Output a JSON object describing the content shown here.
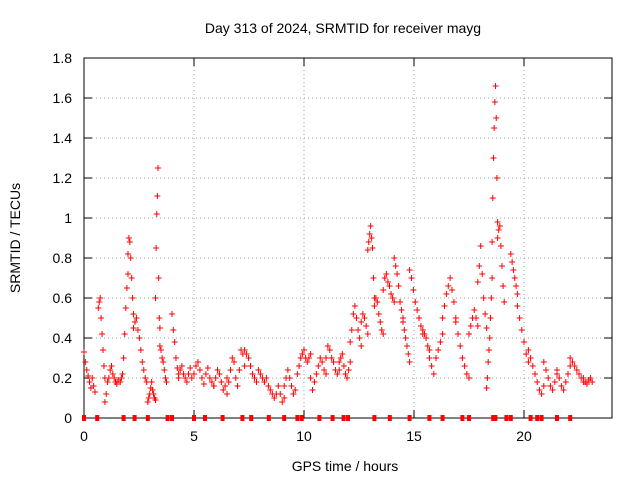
{
  "chart_data": {
    "type": "scatter",
    "title": "Day 313 of 2024, SRMTID for receiver mayg",
    "xlabel": "GPS time / hours",
    "ylabel": "SRMTID / TECUs",
    "xlim": [
      0,
      24
    ],
    "ylim": [
      0,
      1.8
    ],
    "xticks": [
      0,
      5,
      10,
      15,
      20
    ],
    "xtick_labels": [
      "0",
      "5",
      "10",
      "15",
      "20"
    ],
    "yticks": [
      0,
      0.2,
      0.4,
      0.6,
      0.8,
      1,
      1.2,
      1.4,
      1.6,
      1.8
    ],
    "ytick_labels": [
      "0",
      "0.2",
      "0.4",
      "0.6",
      "0.8",
      "1",
      "1.2",
      "1.4",
      "1.6",
      "1.8"
    ],
    "grid": true,
    "marker": "+",
    "color": "#ff0000",
    "gap_marker_y": 0,
    "gap_markers_x": [
      0.0,
      0.6,
      1.8,
      2.3,
      2.9,
      3.8,
      4.0,
      5.0,
      5.5,
      6.3,
      7.2,
      7.6,
      8.4,
      9.1,
      9.7,
      9.9,
      10.7,
      11.3,
      11.8,
      12.0,
      13.2,
      13.9,
      14.8,
      15.7,
      16.3,
      17.2,
      17.5,
      18.6,
      18.7,
      19.2,
      19.4,
      20.3,
      20.6,
      20.8,
      21.5,
      22.1
    ],
    "segments": [
      {
        "start": 0.0,
        "end": 0.5,
        "values": [
          0.33,
          0.28,
          0.24,
          0.21,
          0.18,
          0.15,
          0.2,
          0.16,
          0.13
        ]
      },
      {
        "start": 0.65,
        "end": 0.95,
        "values": [
          0.55,
          0.58,
          0.6,
          0.5,
          0.42,
          0.34,
          0.26,
          0.2
        ]
      },
      {
        "start": 0.95,
        "end": 1.55,
        "values": [
          0.08,
          0.12,
          0.18,
          0.2,
          0.24,
          0.26,
          0.22,
          0.2,
          0.18,
          0.17,
          0.19
        ]
      },
      {
        "start": 1.65,
        "end": 2.0,
        "values": [
          0.18,
          0.2,
          0.22,
          0.3,
          0.42,
          0.55,
          0.65,
          0.72
        ]
      },
      {
        "start": 2.0,
        "end": 2.25,
        "values": [
          0.82,
          0.9,
          0.88,
          0.8,
          0.7,
          0.6,
          0.52
        ]
      },
      {
        "start": 2.25,
        "end": 2.85,
        "values": [
          0.45,
          0.48,
          0.5,
          0.44,
          0.4,
          0.34,
          0.28,
          0.24,
          0.2,
          0.18
        ]
      },
      {
        "start": 2.9,
        "end": 3.25,
        "values": [
          0.08,
          0.1,
          0.12,
          0.15,
          0.18,
          0.14,
          0.12,
          0.1,
          0.09
        ]
      },
      {
        "start": 3.25,
        "end": 3.45,
        "values": [
          0.6,
          0.85,
          1.02,
          1.11,
          1.25,
          0.7,
          0.5,
          0.45
        ]
      },
      {
        "start": 3.45,
        "end": 3.75,
        "values": [
          0.36,
          0.34,
          0.3,
          0.28,
          0.24,
          0.2,
          0.18
        ]
      },
      {
        "start": 4.0,
        "end": 4.3,
        "values": [
          0.52,
          0.44,
          0.38,
          0.3,
          0.25,
          0.22
        ]
      },
      {
        "start": 4.3,
        "end": 4.9,
        "values": [
          0.2,
          0.24,
          0.26,
          0.22,
          0.2,
          0.18,
          0.22,
          0.25,
          0.2
        ]
      },
      {
        "start": 5.0,
        "end": 5.9,
        "values": [
          0.22,
          0.26,
          0.28,
          0.24,
          0.2,
          0.17,
          0.22,
          0.25,
          0.2,
          0.18,
          0.16
        ]
      },
      {
        "start": 5.9,
        "end": 6.5,
        "values": [
          0.16,
          0.2,
          0.24,
          0.22,
          0.18,
          0.14,
          0.16,
          0.2
        ]
      },
      {
        "start": 6.5,
        "end": 7.3,
        "values": [
          0.12,
          0.18,
          0.24,
          0.3,
          0.28,
          0.2,
          0.16,
          0.24,
          0.34,
          0.32,
          0.26
        ]
      },
      {
        "start": 7.3,
        "end": 8.2,
        "values": [
          0.34,
          0.32,
          0.3,
          0.26,
          0.22,
          0.2,
          0.18,
          0.24,
          0.22,
          0.2,
          0.18
        ]
      },
      {
        "start": 8.2,
        "end": 9.1,
        "values": [
          0.18,
          0.2,
          0.16,
          0.14,
          0.12,
          0.1,
          0.12,
          0.16,
          0.12,
          0.08,
          0.1
        ]
      },
      {
        "start": 9.1,
        "end": 9.6,
        "values": [
          0.16,
          0.2,
          0.24,
          0.2,
          0.16,
          0.12,
          0.14
        ]
      },
      {
        "start": 9.7,
        "end": 10.3,
        "values": [
          0.22,
          0.26,
          0.3,
          0.32,
          0.34,
          0.3,
          0.28,
          0.3,
          0.32
        ]
      },
      {
        "start": 10.3,
        "end": 11.0,
        "values": [
          0.2,
          0.14,
          0.18,
          0.22,
          0.26,
          0.3,
          0.28,
          0.24,
          0.22
        ]
      },
      {
        "start": 11.0,
        "end": 11.6,
        "values": [
          0.3,
          0.36,
          0.34,
          0.3,
          0.28,
          0.24,
          0.22,
          0.24
        ]
      },
      {
        "start": 11.6,
        "end": 12.1,
        "values": [
          0.28,
          0.3,
          0.32,
          0.26,
          0.22,
          0.2,
          0.24,
          0.28
        ]
      },
      {
        "start": 12.1,
        "end": 12.6,
        "values": [
          0.38,
          0.44,
          0.52,
          0.56,
          0.5,
          0.44,
          0.4,
          0.36
        ]
      },
      {
        "start": 12.6,
        "end": 12.9,
        "values": [
          0.48,
          0.52,
          0.5,
          0.46,
          0.42
        ]
      },
      {
        "start": 12.9,
        "end": 13.2,
        "values": [
          0.84,
          0.88,
          0.92,
          0.96,
          0.9,
          0.85,
          0.7,
          0.6
        ]
      },
      {
        "start": 13.2,
        "end": 13.6,
        "values": [
          0.56,
          0.6,
          0.58,
          0.52,
          0.48,
          0.44,
          0.42
        ]
      },
      {
        "start": 13.6,
        "end": 14.1,
        "values": [
          0.64,
          0.7,
          0.72,
          0.68,
          0.66,
          0.62,
          0.6,
          0.58
        ]
      },
      {
        "start": 14.1,
        "end": 14.5,
        "values": [
          0.8,
          0.76,
          0.72,
          0.66,
          0.58,
          0.54,
          0.5
        ]
      },
      {
        "start": 14.5,
        "end": 14.8,
        "values": [
          0.48,
          0.44,
          0.4,
          0.36,
          0.32,
          0.28
        ]
      },
      {
        "start": 14.8,
        "end": 15.4,
        "values": [
          0.74,
          0.7,
          0.64,
          0.58,
          0.54,
          0.5,
          0.46,
          0.42
        ]
      },
      {
        "start": 15.4,
        "end": 15.7,
        "values": [
          0.44,
          0.42,
          0.4,
          0.36,
          0.34
        ]
      },
      {
        "start": 15.7,
        "end": 16.3,
        "values": [
          0.3,
          0.26,
          0.22,
          0.3,
          0.34,
          0.38,
          0.42
        ]
      },
      {
        "start": 16.3,
        "end": 16.9,
        "values": [
          0.5,
          0.56,
          0.62,
          0.66,
          0.7,
          0.64,
          0.58,
          0.5
        ]
      },
      {
        "start": 16.9,
        "end": 17.5,
        "values": [
          0.48,
          0.42,
          0.36,
          0.3,
          0.26,
          0.22,
          0.2
        ]
      },
      {
        "start": 17.5,
        "end": 17.9,
        "values": [
          0.42,
          0.46,
          0.5,
          0.54,
          0.5,
          0.46
        ]
      },
      {
        "start": 17.9,
        "end": 18.3,
        "values": [
          0.68,
          0.76,
          0.86,
          0.72,
          0.6,
          0.52,
          0.45
        ]
      },
      {
        "start": 18.3,
        "end": 18.55,
        "values": [
          0.15,
          0.2,
          0.28,
          0.34,
          0.4,
          0.5,
          0.6,
          0.7
        ]
      },
      {
        "start": 18.55,
        "end": 18.8,
        "values": [
          0.88,
          1.1,
          1.3,
          1.45,
          1.58,
          1.66,
          1.5,
          1.2,
          0.98
        ]
      },
      {
        "start": 18.8,
        "end": 19.1,
        "values": [
          0.9,
          0.94,
          0.96,
          0.86,
          0.76,
          0.66,
          0.58
        ]
      },
      {
        "start": 19.4,
        "end": 19.7,
        "values": [
          0.82,
          0.78,
          0.74,
          0.7,
          0.66,
          0.62
        ]
      },
      {
        "start": 19.7,
        "end": 20.2,
        "values": [
          0.56,
          0.5,
          0.44,
          0.38,
          0.32,
          0.28
        ]
      },
      {
        "start": 20.2,
        "end": 20.9,
        "values": [
          0.34,
          0.3,
          0.26,
          0.22,
          0.18,
          0.14,
          0.12,
          0.16
        ]
      },
      {
        "start": 20.9,
        "end": 21.5,
        "values": [
          0.28,
          0.24,
          0.2,
          0.16,
          0.14,
          0.18,
          0.22
        ]
      },
      {
        "start": 21.5,
        "end": 22.1,
        "values": [
          0.24,
          0.2,
          0.16,
          0.14,
          0.18,
          0.22,
          0.26
        ]
      },
      {
        "start": 22.1,
        "end": 22.7,
        "values": [
          0.3,
          0.28,
          0.26,
          0.24,
          0.22,
          0.2,
          0.18
        ]
      },
      {
        "start": 22.7,
        "end": 23.1,
        "values": [
          0.2,
          0.18,
          0.17,
          0.19,
          0.2,
          0.18
        ]
      }
    ]
  }
}
